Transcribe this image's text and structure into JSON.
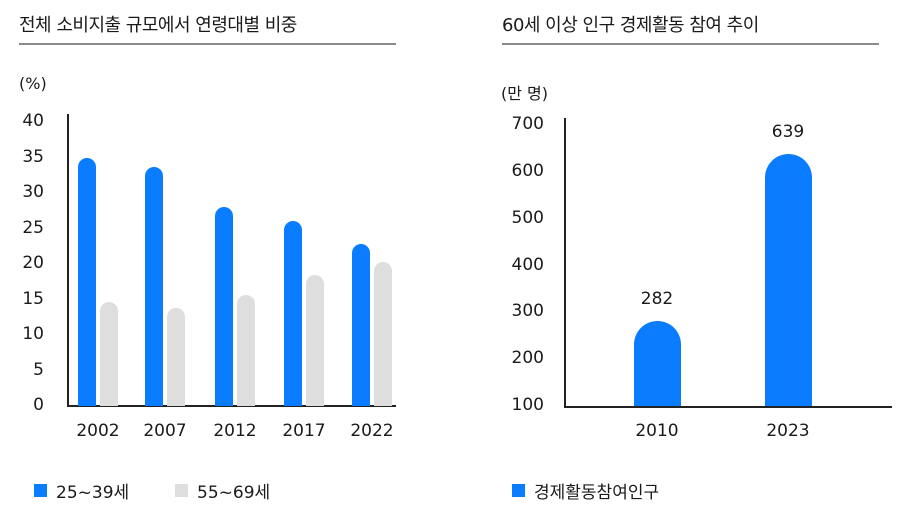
{
  "colors": {
    "series_a": "#0a7cff",
    "series_b": "#dedede",
    "axis": "#222222",
    "rule": "#8a8a8a"
  },
  "left": {
    "title": "전체 소비지출 규모에서 연령대별 비중",
    "unit": "(%)",
    "yticks": [
      "40",
      "35",
      "30",
      "25",
      "20",
      "15",
      "10",
      "5",
      "0"
    ],
    "xticks": [
      "2002",
      "2007",
      "2012",
      "2017",
      "2022"
    ],
    "legend": [
      {
        "label": "25~39세"
      },
      {
        "label": "55~69세"
      }
    ]
  },
  "right": {
    "title": "60세 이상 인구 경제활동 참여 추이",
    "unit": "(만 명)",
    "yticks": [
      "700",
      "600",
      "500",
      "400",
      "300",
      "200",
      "100"
    ],
    "xticks": [
      "2010",
      "2023"
    ],
    "value_labels": [
      "282",
      "639"
    ],
    "legend": [
      {
        "label": "경제활동참여인구"
      }
    ]
  },
  "chart_data": [
    {
      "type": "bar",
      "title": "전체 소비지출 규모에서 연령대별 비중",
      "xlabel": "",
      "ylabel": "(%)",
      "categories": [
        "2002",
        "2007",
        "2012",
        "2017",
        "2022"
      ],
      "series": [
        {
          "name": "25~39세",
          "values": [
            35.0,
            33.6,
            28.0,
            26.0,
            22.8
          ]
        },
        {
          "name": "55~69세",
          "values": [
            14.7,
            13.8,
            15.7,
            18.4,
            20.3
          ]
        }
      ],
      "ylim": [
        0,
        40
      ],
      "yticks": [
        0,
        5,
        10,
        15,
        20,
        25,
        30,
        35,
        40
      ],
      "grid": false,
      "legend_position": "bottom"
    },
    {
      "type": "bar",
      "title": "60세 이상 인구 경제활동 참여 추이",
      "xlabel": "",
      "ylabel": "(만 명)",
      "categories": [
        "2010",
        "2023"
      ],
      "series": [
        {
          "name": "경제활동참여인구",
          "values": [
            282,
            639
          ]
        }
      ],
      "ylim": [
        100,
        700
      ],
      "yticks": [
        100,
        200,
        300,
        400,
        500,
        600,
        700
      ],
      "grid": false,
      "legend_position": "bottom",
      "annotations": [
        "282",
        "639"
      ]
    }
  ]
}
